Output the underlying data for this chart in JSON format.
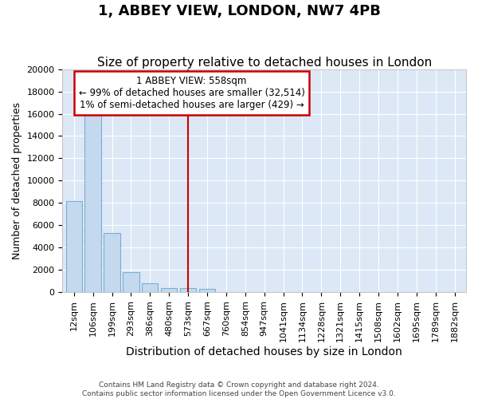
{
  "title": "1, ABBEY VIEW, LONDON, NW7 4PB",
  "subtitle": "Size of property relative to detached houses in London",
  "xlabel": "Distribution of detached houses by size in London",
  "ylabel": "Number of detached properties",
  "categories": [
    "12sqm",
    "106sqm",
    "199sqm",
    "293sqm",
    "386sqm",
    "480sqm",
    "573sqm",
    "667sqm",
    "760sqm",
    "854sqm",
    "947sqm",
    "1041sqm",
    "1134sqm",
    "1228sqm",
    "1321sqm",
    "1415sqm",
    "1508sqm",
    "1602sqm",
    "1695sqm",
    "1789sqm",
    "1882sqm"
  ],
  "values": [
    8200,
    16500,
    5300,
    1800,
    800,
    350,
    350,
    300,
    0,
    0,
    0,
    0,
    0,
    0,
    0,
    0,
    0,
    0,
    0,
    0,
    0
  ],
  "bar_color": "#c5d9ee",
  "bar_edge_color": "#7aafd4",
  "vline_x_idx": 6,
  "vline_color": "#cc0000",
  "annotation_line1": "1 ABBEY VIEW: 558sqm",
  "annotation_line2": "← 99% of detached houses are smaller (32,514)",
  "annotation_line3": "1% of semi-detached houses are larger (429) →",
  "annotation_box_color": "#cc0000",
  "ylim": [
    0,
    20000
  ],
  "yticks": [
    0,
    2000,
    4000,
    6000,
    8000,
    10000,
    12000,
    14000,
    16000,
    18000,
    20000
  ],
  "fig_bg_color": "#ffffff",
  "ax_bg_color": "#dce8f5",
  "grid_color": "#ffffff",
  "title_fontsize": 13,
  "subtitle_fontsize": 11,
  "ylabel_fontsize": 9,
  "xlabel_fontsize": 10,
  "tick_fontsize": 8,
  "footer_text": "Contains HM Land Registry data © Crown copyright and database right 2024.\nContains public sector information licensed under the Open Government Licence v3.0."
}
